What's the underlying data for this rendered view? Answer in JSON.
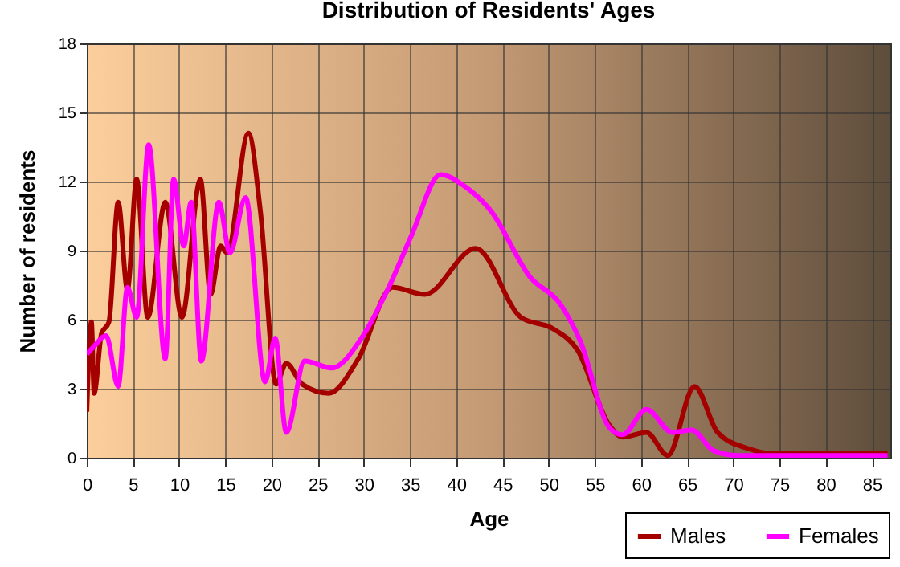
{
  "chart_data": {
    "type": "line",
    "title": "Distribution of Residents' Ages",
    "xlabel": "Age",
    "ylabel": "Number of residents",
    "xlim": [
      0,
      87
    ],
    "xticks": [
      0,
      5,
      10,
      15,
      20,
      25,
      30,
      35,
      40,
      45,
      50,
      55,
      60,
      65,
      70,
      75,
      80,
      85
    ],
    "ylim": [
      0,
      18
    ],
    "yticks": [
      0,
      3,
      6,
      9,
      12,
      15,
      18
    ],
    "grid": true,
    "legend": "bottom right",
    "marker": "none",
    "line_style": "solid",
    "series": [
      {
        "name": "Males",
        "color": "#a50000",
        "x": [
          0,
          0.5,
          0.8,
          1.6,
          2.4,
          3.4,
          4.4,
          5.4,
          6.6,
          8.5,
          10.3,
          12.3,
          13.4,
          14.5,
          15.2,
          17.5,
          18.8,
          20.5,
          21.6,
          23.3,
          26.2,
          29.4,
          33.1,
          36.6,
          42.1,
          47.0,
          50.5,
          53.1,
          56.6,
          58.0,
          60.6,
          62.9,
          65.8,
          68.3,
          71.6,
          73.9,
          86.7
        ],
        "values": [
          2.0,
          5.9,
          2.8,
          5.4,
          5.9,
          11.1,
          7.3,
          12.1,
          6.1,
          11.1,
          6.1,
          12.1,
          7.1,
          9.2,
          8.9,
          14.1,
          10.7,
          3.2,
          4.1,
          3.2,
          2.8,
          4.3,
          7.4,
          7.1,
          9.1,
          6.1,
          5.6,
          4.7,
          1.4,
          0.9,
          1.1,
          0.1,
          3.1,
          1.1,
          0.4,
          0.2,
          0.2
        ]
      },
      {
        "name": "Females",
        "color": "#ff00ff",
        "x": [
          0,
          0.7,
          2.1,
          3.4,
          4.4,
          5.4,
          6.7,
          8.5,
          9.4,
          10.5,
          11.3,
          12.4,
          14.3,
          15.5,
          17.2,
          19.3,
          20.4,
          21.6,
          23.6,
          26.5,
          29.9,
          32.8,
          35.2,
          38.3,
          40.9,
          43.8,
          47.9,
          51.4,
          53.4,
          56.6,
          58.0,
          60.6,
          63.4,
          65.5,
          67.9,
          70.5,
          86.7
        ],
        "values": [
          4.5,
          4.8,
          5.3,
          3.1,
          7.4,
          6.1,
          13.6,
          4.3,
          12.1,
          9.2,
          11.1,
          4.2,
          11.1,
          8.9,
          11.3,
          3.3,
          5.2,
          1.1,
          4.2,
          3.9,
          5.3,
          7.5,
          9.7,
          12.3,
          11.8,
          10.7,
          7.9,
          6.6,
          5.1,
          1.3,
          1.0,
          2.1,
          1.1,
          1.2,
          0.3,
          0.1,
          0.1
        ]
      }
    ]
  }
}
